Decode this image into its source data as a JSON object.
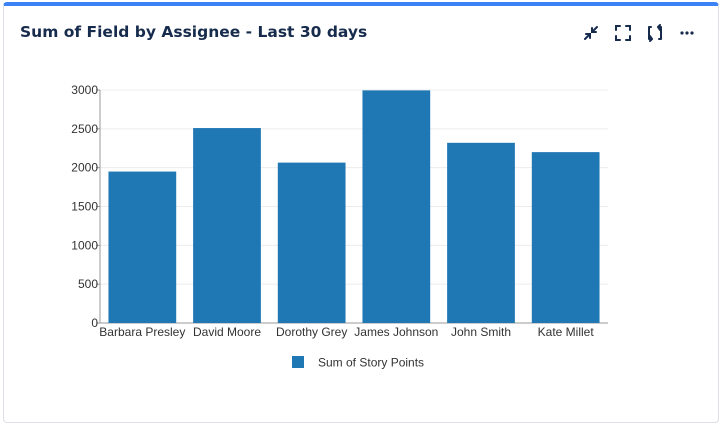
{
  "header": {
    "title": "Sum of Field by Assignee - Last 30 days"
  },
  "actions": [
    {
      "name": "minimize",
      "icon": "minimize-icon"
    },
    {
      "name": "fullscreen",
      "icon": "fullscreen-icon"
    },
    {
      "name": "refresh",
      "icon": "refresh-icon"
    },
    {
      "name": "more",
      "icon": "more-icon"
    }
  ],
  "chart_data": {
    "type": "bar",
    "categories": [
      "Barbara Presley",
      "David Moore",
      "Dorothy Grey",
      "James Johnson",
      "John Smith",
      "Kate Millet"
    ],
    "series": [
      {
        "name": "Sum of Story Points",
        "color": "#1f77b4",
        "values": [
          1950,
          2510,
          2065,
          2995,
          2320,
          2200
        ]
      }
    ],
    "yticks": [
      0,
      500,
      1000,
      1500,
      2000,
      2500,
      3000
    ],
    "ylim": [
      0,
      3000
    ],
    "grid": true,
    "legend": "bottom-center"
  }
}
